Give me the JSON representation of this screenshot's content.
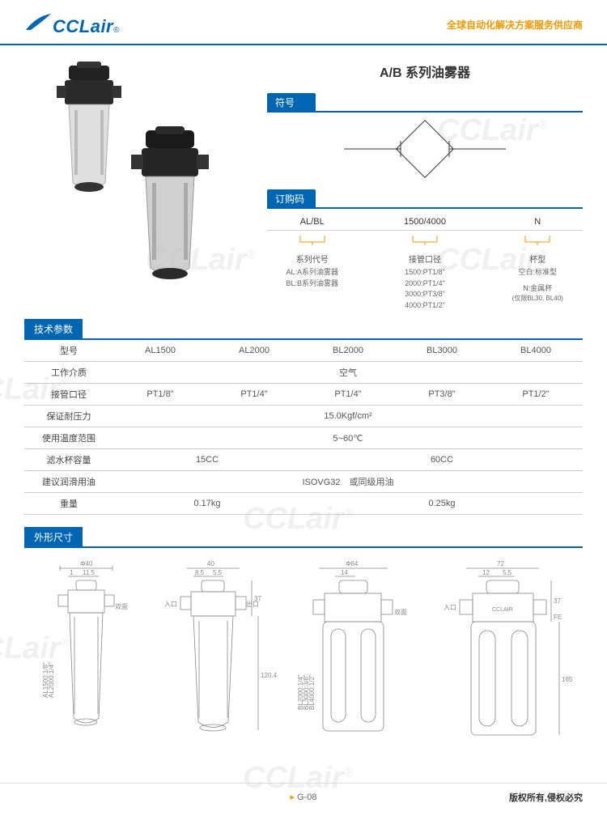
{
  "brand": {
    "name": "CCLair",
    "reg": "®"
  },
  "slogan": "全球自动化解决方案服务供应商",
  "product_title": "A/B 系列油雾器",
  "sections": {
    "symbol": "符号",
    "order": "订购码",
    "specs": "技术参数",
    "dims": "外形尺寸"
  },
  "order_code": {
    "col1": {
      "code": "AL/BL",
      "label": "系列代号",
      "items": [
        "AL:A系列油雾器",
        "BL:B系列油雾器"
      ]
    },
    "col2": {
      "code": "1500/4000",
      "label": "接管口径",
      "items": [
        "1500:PT1/8\"",
        "2000:PT1/4\"",
        "3000:PT3/8\"",
        "4000:PT1/2\""
      ]
    },
    "col3": {
      "code": "N",
      "label": "杯型",
      "items": [
        "空白:标准型",
        "N:金属杯",
        "(仅限BL30, BL40)"
      ]
    }
  },
  "specs": {
    "rows": [
      {
        "label": "型号",
        "cells": [
          "AL1500",
          "AL2000",
          "BL2000",
          "BL3000",
          "BL4000"
        ]
      },
      {
        "label": "工作介质",
        "span": "空气"
      },
      {
        "label": "接管口径",
        "cells": [
          "PT1/8\"",
          "PT1/4\"",
          "PT1/4\"",
          "PT3/8\"",
          "PT1/2\""
        ]
      },
      {
        "label": "保证耐压力",
        "span": "15.0Kgf/cm²"
      },
      {
        "label": "使用温度范围",
        "span": "5~60℃"
      },
      {
        "label": "滤水杯容量",
        "cells2": [
          "15CC",
          "60CC"
        ]
      },
      {
        "label": "建议润滑用油",
        "span": "ISOVG32　或同级用油"
      },
      {
        "label": "重量",
        "cells2": [
          "0.17kg",
          "0.25kg"
        ]
      }
    ]
  },
  "dimensions": {
    "fig1": {
      "w": "Φ40",
      "d1": "1",
      "d2": "11.5",
      "labels": [
        "AL1500:1/8\"",
        "AL2000:1/4\""
      ],
      "note": "双面"
    },
    "fig2": {
      "w": "40",
      "d1": "8.5",
      "d2": "5.5",
      "h1": "37",
      "h2": "120.4",
      "in": "入口",
      "out": "出口"
    },
    "fig3": {
      "w": "Φ64",
      "d1": "14",
      "labels": [
        "BL2000:1/4\"",
        "BL3000:3/8\"",
        "BL4000:1/2\""
      ],
      "note": "双面"
    },
    "fig4": {
      "w": "72",
      "d1": "12",
      "d2": "5.5",
      "h1": "37",
      "h2": "165",
      "in": "入口",
      "brand": "CCLAIR",
      "fe": "FE"
    }
  },
  "footer": {
    "page": "G-08",
    "copyright": "版权所有,侵权必究"
  },
  "colors": {
    "blue": "#0066b3",
    "orange": "#f39800",
    "gray": "#888",
    "lightgray": "#ccc"
  }
}
